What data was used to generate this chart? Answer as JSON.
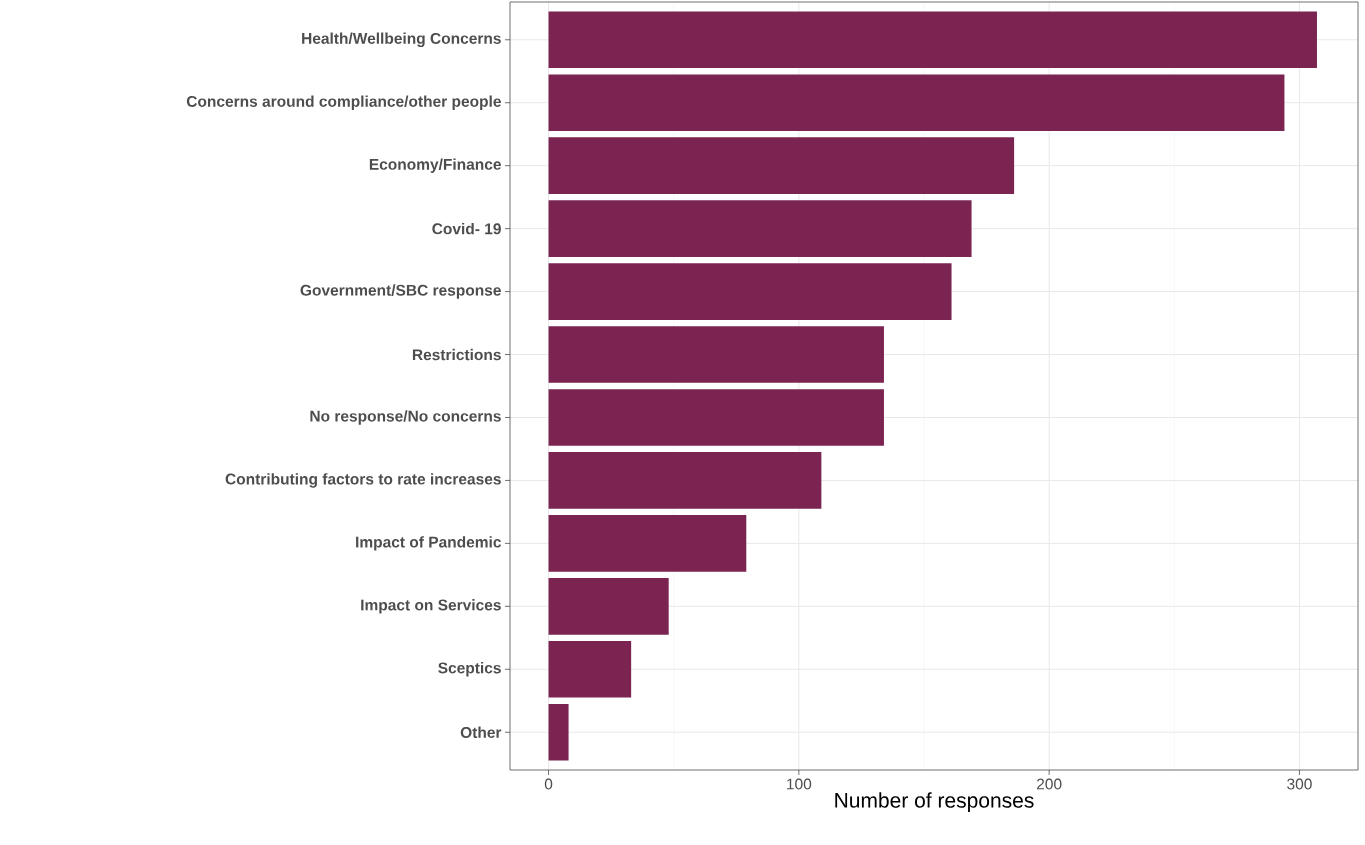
{
  "chart_data": {
    "type": "bar",
    "orientation": "horizontal",
    "xlabel": "Number of responses",
    "categories": [
      "Health/Wellbeing Concerns",
      "Concerns around compliance/other people",
      "Economy/Finance",
      "Covid- 19",
      "Government/SBC response",
      "Restrictions",
      "No response/No concerns",
      "Contributing factors to rate increases",
      "Impact of Pandemic",
      "Impact on Services",
      "Sceptics",
      "Other"
    ],
    "values": [
      307,
      294,
      186,
      169,
      161,
      134,
      134,
      109,
      79,
      48,
      33,
      8
    ],
    "color": "#7b2452",
    "xlim": [
      -15.4,
      323.4
    ],
    "xticks": [
      0,
      100,
      200,
      300
    ],
    "grid": true
  }
}
